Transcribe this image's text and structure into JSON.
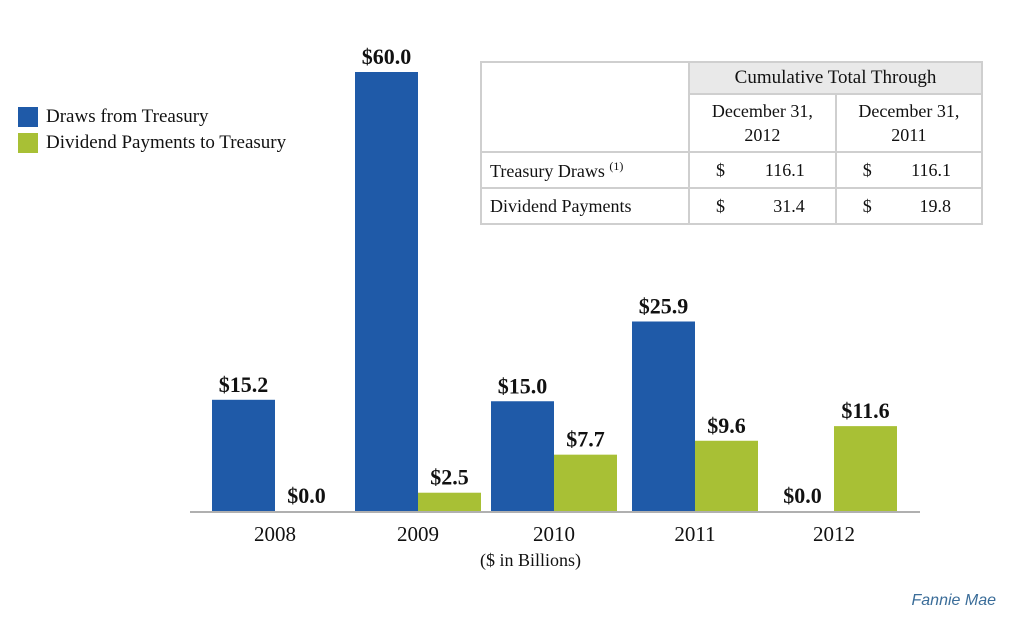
{
  "chart_data": {
    "type": "bar",
    "categories": [
      "2008",
      "2009",
      "2010",
      "2011",
      "2012"
    ],
    "series": [
      {
        "name": "Draws from Treasury",
        "color": "#1f5aa8",
        "values": [
          15.2,
          60.0,
          15.0,
          25.9,
          0.0
        ],
        "labels": [
          "$15.2",
          "$60.0",
          "$15.0",
          "$25.9",
          "$0.0"
        ]
      },
      {
        "name": "Dividend Payments to Treasury",
        "color": "#a8c035",
        "values": [
          0.0,
          2.5,
          7.7,
          9.6,
          11.6
        ],
        "labels": [
          "$0.0",
          "$2.5",
          "$7.7",
          "$9.6",
          "$11.6"
        ]
      }
    ],
    "xlabel": "($ in Billions)",
    "ylim": [
      0,
      60
    ],
    "legend_position": "top-left",
    "grid": false
  },
  "table": {
    "group_header": "Cumulative Total Through",
    "columns": [
      "December 31, 2012",
      "December 31, 2011"
    ],
    "rows": [
      {
        "label": "Treasury Draws",
        "note": "(1)",
        "currency": "$",
        "values": [
          "116.1",
          "116.1"
        ]
      },
      {
        "label": "Dividend Payments",
        "currency": "$",
        "values": [
          "31.4",
          "19.8"
        ]
      }
    ]
  },
  "source": "Fannie Mae"
}
